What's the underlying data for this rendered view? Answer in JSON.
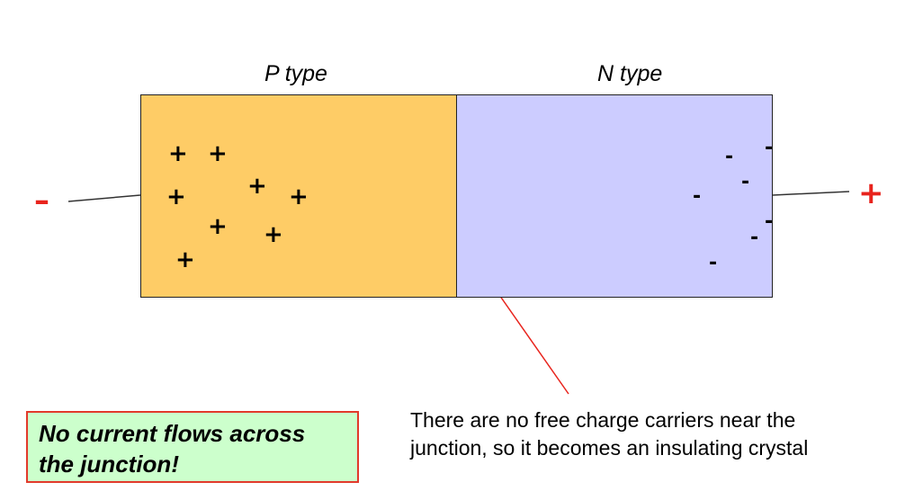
{
  "labels": {
    "p_type": "P type",
    "n_type": "N type"
  },
  "charges": {
    "p_symbol": "+",
    "n_symbol": "-",
    "p_count": 8,
    "n_count": 7
  },
  "terminals": {
    "negative": "–",
    "positive": "+"
  },
  "colors": {
    "p_region": "#fecc66",
    "n_region": "#ccccff",
    "terminal": "#e8241d",
    "arrow": "#e8241d",
    "status_background": "#ccffcc",
    "status_border": "#e23a2b"
  },
  "callout": {
    "line1": "There are no free charge carriers near the",
    "line2": "junction, so it becomes an insulating crystal"
  },
  "status": {
    "line1": "No current flows across",
    "line2": "the junction!"
  }
}
